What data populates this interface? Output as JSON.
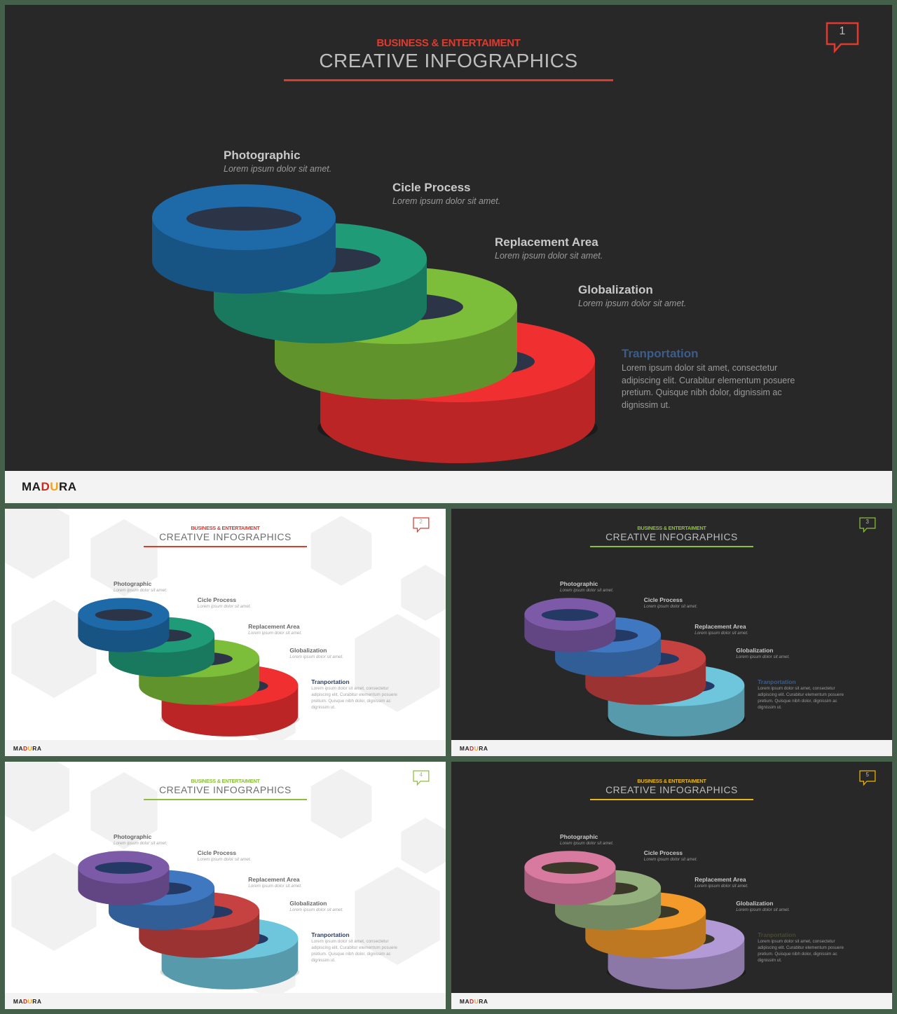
{
  "brand": "MADURA",
  "subtitle": "BUSINESS & ENTERTAIMENT",
  "title": "CREATIVE INFOGRAPHICS",
  "labels": [
    {
      "heading": "Photographic",
      "text": "Lorem ipsum dolor sit amet."
    },
    {
      "heading": "Cicle Process",
      "text": "Lorem ipsum dolor sit amet."
    },
    {
      "heading": "Replacement Area",
      "text": "Lorem ipsum dolor sit amet."
    },
    {
      "heading": "Globalization",
      "text": "Lorem ipsum dolor sit amet."
    }
  ],
  "final": {
    "heading": "Tranportation",
    "body": "Lorem ipsum dolor sit amet, consectetur adipiscing elit. Curabitur elementum posuere pretium. Quisque nibh dolor, dignissim ac dignissim ut."
  },
  "slides": [
    {
      "number": "1",
      "theme": "dark",
      "accent": "#e03a2e",
      "rings": [
        "#1e6aa8",
        "#1f9b78",
        "#7cbd3a",
        "#f03030"
      ],
      "hole": "#2c3548",
      "final_heading_color": "#3b5d8c"
    },
    {
      "number": "2",
      "theme": "light",
      "accent": "#e03a2e",
      "rings": [
        "#1e6aa8",
        "#1f9b78",
        "#7cbd3a",
        "#f03030"
      ],
      "hole": "#2c3548",
      "final_heading_color": "#2a3f63"
    },
    {
      "number": "3",
      "theme": "dark",
      "accent": "#8bbf3c",
      "rings": [
        "#7d5aa8",
        "#3f78c0",
        "#c64240",
        "#6ec6dc"
      ],
      "hole": "#243a64",
      "final_heading_color": "#3b5d8c"
    },
    {
      "number": "4",
      "theme": "light",
      "accent": "#8bbf3c",
      "rings": [
        "#7d5aa8",
        "#3f78c0",
        "#c64240",
        "#6ec6dc"
      ],
      "hole": "#243a64",
      "final_heading_color": "#2a3f63"
    },
    {
      "number": "5",
      "theme": "dark",
      "accent": "#e8b51a",
      "rings": [
        "#d87aa0",
        "#94b07c",
        "#f39a2a",
        "#b29ad6"
      ],
      "hole": "#3a3828",
      "final_heading_color": "#4a4a30"
    }
  ]
}
